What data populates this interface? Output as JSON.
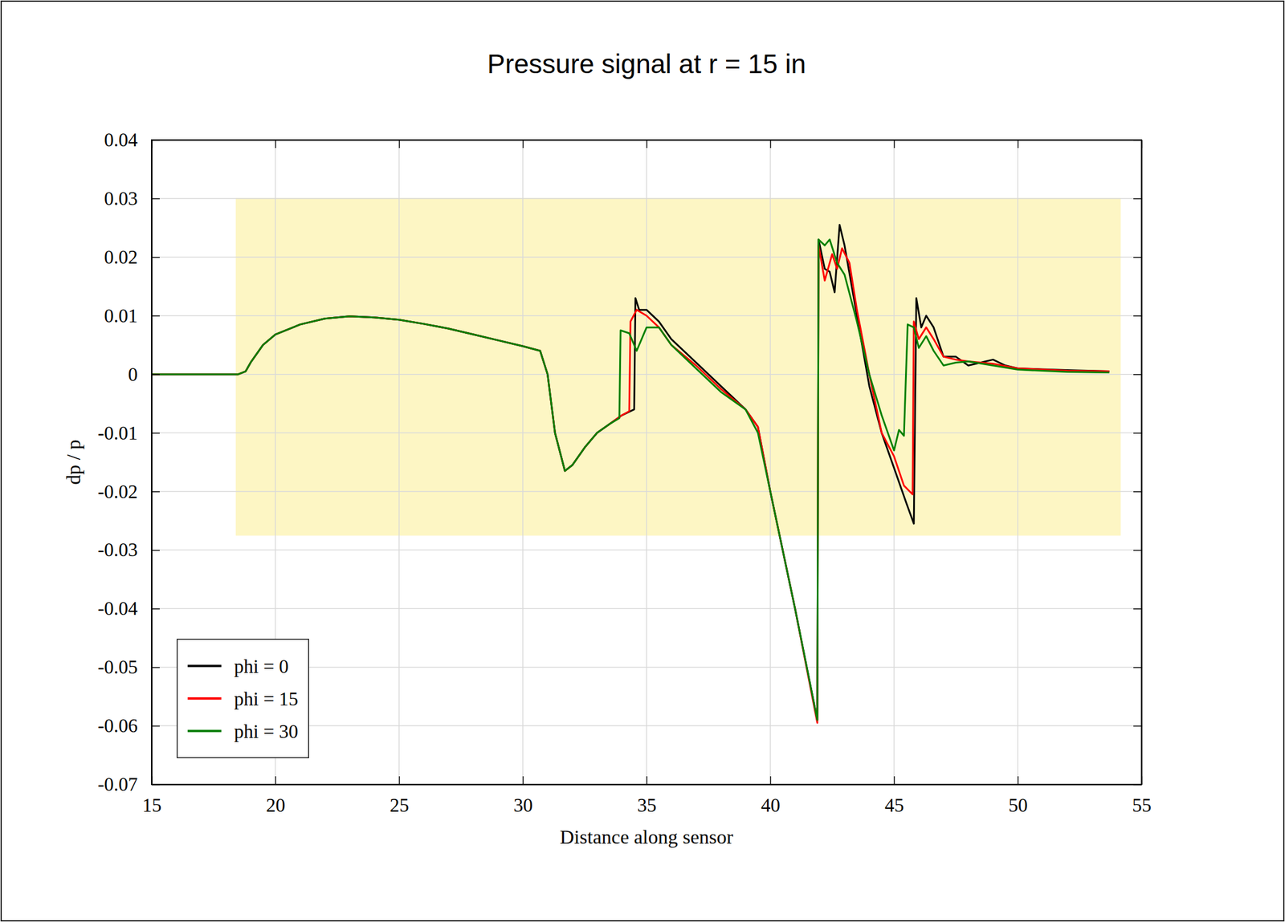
{
  "chart_data": {
    "type": "line",
    "title": "Pressure signal at r = 15 in",
    "x_label": "Distance along sensor",
    "y_label": "dp / p",
    "xlim": [
      15,
      55
    ],
    "xticks": [
      15,
      20,
      25,
      30,
      35,
      40,
      45,
      50,
      55
    ],
    "ylim": [
      -0.07,
      0.04
    ],
    "yticks": [
      -0.07,
      -0.06,
      -0.05,
      -0.04,
      -0.03,
      -0.02,
      -0.01,
      0,
      0.01,
      0.02,
      0.03,
      0.04
    ],
    "grid": true,
    "legend": "bottom-left",
    "series": [
      {
        "name": "phi = 0",
        "color": "#000000",
        "x": [
          15,
          18.5,
          18.8,
          19.0,
          19.5,
          20,
          21,
          22,
          23,
          24,
          25,
          26,
          27,
          28,
          29,
          30,
          30.7,
          31.0,
          31.3,
          31.7,
          32.0,
          32.5,
          33,
          33.5,
          34.0,
          34.5,
          34.55,
          34.7,
          35,
          35.5,
          36,
          37,
          38,
          39,
          39.5,
          40,
          41,
          41.9,
          41.95,
          42.2,
          42.4,
          42.6,
          42.8,
          43.0,
          43.5,
          44,
          44.5,
          45,
          45.5,
          45.8,
          45.9,
          46.1,
          46.3,
          46.6,
          47,
          47.5,
          48,
          48.5,
          49,
          49.5,
          50,
          52,
          53.7
        ],
        "values": [
          0,
          0,
          0.0005,
          0.002,
          0.005,
          0.0068,
          0.0085,
          0.0095,
          0.0099,
          0.0097,
          0.0093,
          0.0086,
          0.0078,
          0.0068,
          0.0058,
          0.0048,
          0.004,
          0.0,
          -0.01,
          -0.0165,
          -0.0155,
          -0.0125,
          -0.01,
          -0.0085,
          -0.007,
          -0.006,
          0.013,
          0.011,
          0.011,
          0.009,
          0.006,
          0.002,
          -0.002,
          -0.006,
          -0.009,
          -0.02,
          -0.04,
          -0.059,
          0.023,
          0.018,
          0.0175,
          0.014,
          0.0255,
          0.022,
          0.01,
          -0.002,
          -0.01,
          -0.016,
          -0.022,
          -0.0255,
          0.013,
          0.008,
          0.01,
          0.008,
          0.003,
          0.003,
          0.0015,
          0.002,
          0.0025,
          0.0015,
          0.001,
          0.0007,
          0.0005
        ]
      },
      {
        "name": "phi = 15",
        "color": "#ff0000",
        "x": [
          15,
          18.5,
          18.8,
          19.0,
          19.5,
          20,
          21,
          22,
          23,
          24,
          25,
          26,
          27,
          28,
          29,
          30,
          30.7,
          31.0,
          31.3,
          31.7,
          32.0,
          32.5,
          33,
          33.5,
          34.0,
          34.3,
          34.35,
          34.6,
          35,
          35.5,
          36,
          37,
          38,
          39,
          39.5,
          40,
          41,
          41.9,
          41.95,
          42.2,
          42.5,
          42.7,
          42.9,
          43.2,
          43.5,
          44,
          44.5,
          45,
          45.4,
          45.75,
          45.8,
          46.0,
          46.3,
          46.6,
          47,
          47.5,
          48,
          48.5,
          49,
          50,
          52,
          53.7
        ],
        "values": [
          0,
          0,
          0.0005,
          0.002,
          0.005,
          0.0068,
          0.0085,
          0.0095,
          0.0099,
          0.0097,
          0.0093,
          0.0086,
          0.0078,
          0.0068,
          0.0058,
          0.0048,
          0.004,
          0.0,
          -0.01,
          -0.0165,
          -0.0155,
          -0.0125,
          -0.01,
          -0.0085,
          -0.007,
          -0.0063,
          0.009,
          0.011,
          0.01,
          0.008,
          0.005,
          0.0015,
          -0.0025,
          -0.006,
          -0.009,
          -0.02,
          -0.04,
          -0.0595,
          0.022,
          0.016,
          0.0205,
          0.018,
          0.0215,
          0.019,
          0.011,
          0.0,
          -0.01,
          -0.014,
          -0.019,
          -0.0205,
          0.009,
          0.006,
          0.008,
          0.006,
          0.003,
          0.0025,
          0.0022,
          0.002,
          0.0018,
          0.001,
          0.0006,
          0.0005
        ]
      },
      {
        "name": "phi = 30",
        "color": "#008000",
        "x": [
          15,
          18.5,
          18.8,
          19.0,
          19.5,
          20,
          21,
          22,
          23,
          24,
          25,
          26,
          27,
          28,
          29,
          30,
          30.7,
          31.0,
          31.3,
          31.7,
          32.0,
          32.5,
          33,
          33.5,
          33.9,
          33.95,
          34.3,
          34.6,
          35,
          35.5,
          36,
          37,
          38,
          39,
          39.5,
          40,
          41,
          41.9,
          41.95,
          42.2,
          42.4,
          42.7,
          43,
          43.5,
          44,
          44.5,
          45,
          45.2,
          45.4,
          45.55,
          45.8,
          46.0,
          46.3,
          46.6,
          47,
          47.5,
          48,
          49,
          50,
          52,
          53.7
        ],
        "values": [
          0,
          0,
          0.0005,
          0.002,
          0.005,
          0.0068,
          0.0085,
          0.0095,
          0.0099,
          0.0097,
          0.0093,
          0.0086,
          0.0078,
          0.0068,
          0.0058,
          0.0048,
          0.004,
          0.0,
          -0.01,
          -0.0165,
          -0.0155,
          -0.0125,
          -0.01,
          -0.0085,
          -0.0075,
          0.0075,
          0.007,
          0.004,
          0.008,
          0.008,
          0.005,
          0.001,
          -0.003,
          -0.006,
          -0.01,
          -0.02,
          -0.04,
          -0.059,
          0.023,
          0.022,
          0.023,
          0.019,
          0.017,
          0.009,
          0.0,
          -0.007,
          -0.013,
          -0.0095,
          -0.0105,
          0.0085,
          0.008,
          0.0045,
          0.0065,
          0.004,
          0.0015,
          0.002,
          0.0022,
          0.0015,
          0.0008,
          0.0004,
          0.0003
        ]
      }
    ]
  }
}
